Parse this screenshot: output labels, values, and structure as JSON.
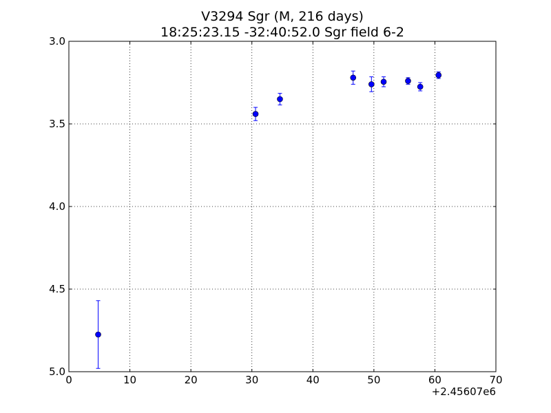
{
  "chart_data": {
    "type": "scatter",
    "title": "V3294 Sgr  (M, 216 days)",
    "subtitle": "18:25:23.15 -32:40:52.0 Sgr field 6-2",
    "xlabel": "",
    "ylabel": "",
    "x_offset_label": "+2.45607e6",
    "xlim": [
      0,
      70
    ],
    "ylim": [
      3.0,
      5.0
    ],
    "y_inverted": true,
    "grid": true,
    "x_ticks": [
      0,
      10,
      20,
      30,
      40,
      50,
      60,
      70
    ],
    "x_tick_labels": [
      "0",
      "10",
      "20",
      "30",
      "40",
      "50",
      "60",
      "70"
    ],
    "y_ticks": [
      3.0,
      3.5,
      4.0,
      4.5,
      5.0
    ],
    "y_tick_labels": [
      "3.0",
      "3.5",
      "4.0",
      "4.5",
      "5.0"
    ],
    "marker_color": "#0000ff",
    "points": [
      {
        "x": 4.8,
        "y": 4.775,
        "err": 0.205
      },
      {
        "x": 30.6,
        "y": 3.44,
        "err": 0.04
      },
      {
        "x": 34.6,
        "y": 3.35,
        "err": 0.035
      },
      {
        "x": 46.6,
        "y": 3.22,
        "err": 0.04
      },
      {
        "x": 49.6,
        "y": 3.26,
        "err": 0.045
      },
      {
        "x": 51.6,
        "y": 3.245,
        "err": 0.03
      },
      {
        "x": 55.6,
        "y": 3.24,
        "err": 0.02
      },
      {
        "x": 57.6,
        "y": 3.275,
        "err": 0.025
      },
      {
        "x": 60.6,
        "y": 3.205,
        "err": 0.02
      }
    ]
  }
}
